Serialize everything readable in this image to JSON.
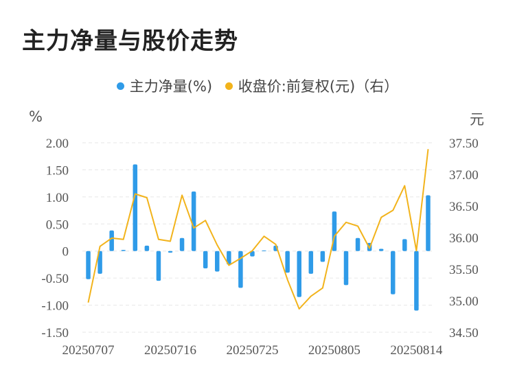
{
  "title": "主力净量与股价走势",
  "legend": [
    {
      "label": "主力净量(%)",
      "color": "#2f9be8"
    },
    {
      "label": "收盘价:前复权(元)（右）",
      "color": "#f2b31b"
    }
  ],
  "chart_data": {
    "type": "bar+line",
    "title": "主力净量与股价走势",
    "left_axis": {
      "unit": "%",
      "ticks": [
        "2.00",
        "1.50",
        "1.00",
        "0.50",
        "0",
        "-0.50",
        "-1.00",
        "-1.50"
      ],
      "range": [
        -1.5,
        2.0
      ]
    },
    "right_axis": {
      "unit": "元",
      "ticks": [
        "37.50",
        "37.00",
        "36.50",
        "36.00",
        "35.50",
        "35.00",
        "34.50"
      ],
      "range": [
        34.5,
        37.5
      ]
    },
    "x_tick_labels": [
      "20250707",
      "20250716",
      "20250725",
      "20250805",
      "20250814"
    ],
    "x_tick_index": [
      0,
      7,
      14,
      21,
      28
    ],
    "x": [
      "20250707",
      "20250708",
      "20250709",
      "20250710",
      "20250711",
      "20250714",
      "20250715",
      "20250716",
      "20250717",
      "20250718",
      "20250721",
      "20250722",
      "20250723",
      "20250724",
      "20250725",
      "20250728",
      "20250729",
      "20250730",
      "20250731",
      "20250801",
      "20250804",
      "20250805",
      "20250806",
      "20250807",
      "20250808",
      "20250811",
      "20250812",
      "20250813",
      "20250814",
      "20250815"
    ],
    "series": [
      {
        "name": "主力净量(%)",
        "type": "bar",
        "axis": "left",
        "values": [
          -0.52,
          -0.42,
          0.38,
          0.02,
          1.6,
          0.1,
          -0.55,
          -0.03,
          0.24,
          1.1,
          -0.32,
          -0.38,
          -0.25,
          -0.68,
          -0.1,
          0.01,
          0.1,
          -0.4,
          -0.85,
          -0.42,
          -0.2,
          0.73,
          -0.63,
          0.24,
          0.15,
          0.04,
          -0.8,
          0.22,
          -1.1,
          1.03
        ]
      },
      {
        "name": "收盘价:前复权(元)（右）",
        "type": "line",
        "axis": "right",
        "values": [
          34.97,
          35.86,
          35.99,
          35.97,
          36.69,
          36.63,
          35.97,
          35.94,
          36.67,
          36.15,
          36.27,
          35.88,
          35.56,
          35.67,
          35.79,
          36.02,
          35.89,
          35.33,
          34.87,
          35.07,
          35.2,
          36.02,
          36.24,
          36.18,
          35.83,
          36.32,
          36.43,
          36.82,
          35.79,
          37.4
        ]
      }
    ]
  }
}
